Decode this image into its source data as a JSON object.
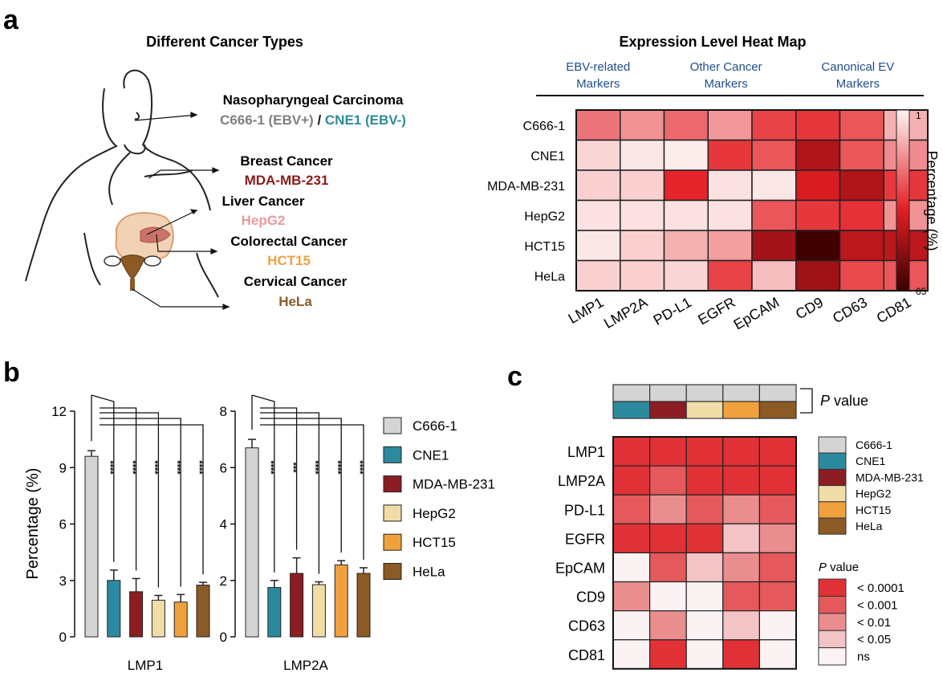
{
  "panels": {
    "a": "a",
    "b": "b",
    "c": "c"
  },
  "panel_a": {
    "left_title": "Different Cancer Types",
    "cancers": [
      {
        "type": "Nasopharyngeal Carcinoma",
        "lines": [
          {
            "text": "C666-1 (EBV+)",
            "color": "#7f7f7f"
          },
          {
            "text": " / ",
            "color": "#111111"
          },
          {
            "text": "CNE1 (EBV-)",
            "color": "#2e8b9a"
          }
        ]
      },
      {
        "type": "Breast Cancer",
        "lines": [
          {
            "text": "MDA-MB-231",
            "color": "#8b1a1a"
          }
        ]
      },
      {
        "type": "Liver Cancer",
        "lines": [
          {
            "text": "HepG2",
            "color": "#e89a9a"
          }
        ]
      },
      {
        "type": "Colorectal Cancer",
        "lines": [
          {
            "text": "HCT15",
            "color": "#f0a040"
          }
        ]
      },
      {
        "type": "Cervical Cancer",
        "lines": [
          {
            "text": "HeLa",
            "color": "#8b5a2b"
          }
        ]
      }
    ]
  },
  "chart_data": [
    {
      "type": "heatmap",
      "title": "Expression Level Heat Map",
      "groups": [
        "EBV-related Markers",
        "Other Cancer Markers",
        "Canonical EV Markers"
      ],
      "group_lines": [
        [
          "EBV-related",
          "Markers"
        ],
        [
          "Other Cancer",
          "Markers"
        ],
        [
          "Canonical EV",
          "Markers"
        ]
      ],
      "rows": [
        "C666-1",
        "CNE1",
        "MDA-MB-231",
        "HepG2",
        "HCT15",
        "HeLa"
      ],
      "columns": [
        "LMP1",
        "LMP2A",
        "PD-L1",
        "EGFR",
        "EpCAM",
        "CD9",
        "CD63",
        "CD81"
      ],
      "values": [
        [
          22,
          17,
          24,
          16,
          30,
          32,
          27,
          12
        ],
        [
          6,
          3,
          2,
          32,
          27,
          45,
          27,
          18
        ],
        [
          7,
          7,
          35,
          4,
          3,
          38,
          45,
          32
        ],
        [
          4,
          4,
          4,
          4,
          27,
          32,
          33,
          17
        ],
        [
          3,
          7,
          12,
          15,
          47,
          64,
          43,
          43
        ],
        [
          7,
          7,
          6,
          30,
          10,
          48,
          29,
          27
        ]
      ],
      "colorbar": {
        "label": "Percentage (%)",
        "min": 1,
        "max": 65,
        "min_label": "1",
        "max_label": "65"
      }
    },
    {
      "type": "bar",
      "title": "",
      "xlabel": "LMP1",
      "ylabel": "Percentage (%)",
      "ylim": [
        0,
        12
      ],
      "yticks": [
        "0",
        "3",
        "6",
        "9",
        "12"
      ],
      "categories": [
        "C666-1",
        "CNE1",
        "MDA-MB-231",
        "HepG2",
        "HCT15",
        "HeLa"
      ],
      "values": [
        9.6,
        3.0,
        2.4,
        1.95,
        1.85,
        2.75
      ],
      "errors": [
        0.3,
        0.55,
        0.7,
        0.25,
        0.4,
        0.15
      ],
      "significance": [
        "****",
        "****",
        "****",
        "****",
        "****"
      ]
    },
    {
      "type": "bar",
      "title": "",
      "xlabel": "LMP2A",
      "ylabel": "",
      "ylim": [
        0,
        8
      ],
      "yticks": [
        "0",
        "2",
        "4",
        "6",
        "8"
      ],
      "categories": [
        "C666-1",
        "CNE1",
        "MDA-MB-231",
        "HepG2",
        "HCT15",
        "HeLa"
      ],
      "values": [
        6.7,
        1.75,
        2.25,
        1.85,
        2.55,
        2.25
      ],
      "errors": [
        0.3,
        0.25,
        0.55,
        0.1,
        0.15,
        0.2
      ],
      "significance": [
        "****",
        "***",
        "****",
        "****",
        "****"
      ]
    },
    {
      "type": "heatmap",
      "title": "",
      "rows": [
        "LMP1",
        "LMP2A",
        "PD-L1",
        "EGFR",
        "EpCAM",
        "CD9",
        "CD63",
        "CD81"
      ],
      "columns": [
        "CNE1",
        "MDA-MB-231",
        "HepG2",
        "HCT15",
        "HeLa"
      ],
      "header_label": "P value",
      "reference": "C666-1",
      "levels": [
        "< 0.0001",
        "< 0.001",
        "< 0.01",
        "< 0.05",
        "ns"
      ],
      "values": [
        [
          0,
          0,
          0,
          0,
          0
        ],
        [
          0,
          1,
          0,
          0,
          0
        ],
        [
          1,
          2,
          1,
          2,
          1
        ],
        [
          0,
          0,
          0,
          3,
          2
        ],
        [
          4,
          1,
          3,
          2,
          1
        ],
        [
          2,
          4,
          4,
          1,
          1
        ],
        [
          4,
          2,
          4,
          3,
          4
        ],
        [
          4,
          0,
          4,
          0,
          4
        ]
      ],
      "legend_title": "P value"
    }
  ],
  "colors": {
    "lines": {
      "C666-1": "#d4d4d4",
      "CNE1": "#2b8a9e",
      "MDA-MB-231": "#8c1d22",
      "HepG2": "#efdca6",
      "HCT15": "#f0a13e",
      "HeLa": "#8c5a24"
    },
    "pvalue_scale": [
      "#e03236",
      "#e4595b",
      "#ea8d8f",
      "#f3c3c5",
      "#fbf3f3"
    ],
    "heat_scale": [
      "#fdf3f3",
      "#e31e24",
      "#3a0000"
    ],
    "group_label": "#1f4e8c"
  }
}
